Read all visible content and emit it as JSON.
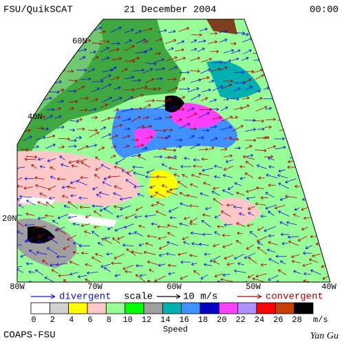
{
  "header": {
    "product": "FSU/QuikSCAT",
    "date": "21 December 2004",
    "time": "00:00"
  },
  "map": {
    "lat_labels": [
      "60N",
      "40N",
      "20N"
    ],
    "lon_labels": [
      "80W",
      "70W",
      "60W",
      "50W",
      "40W"
    ]
  },
  "legend": {
    "divergent": "divergent",
    "scale": "scale",
    "scale_value": "10 m/s",
    "convergent": "convergent",
    "divergent_color": "#1010e0",
    "convergent_color": "#b00000"
  },
  "colorbar": {
    "colors": [
      "#ffffff",
      "#d0d0d0",
      "#ffff00",
      "#ffc8c8",
      "#98ff98",
      "#00ff00",
      "#a0a0a0",
      "#00b0b0",
      "#4090ff",
      "#0000c0",
      "#ff40ff",
      "#b090ff",
      "#ff0000",
      "#c84000",
      "#000000"
    ],
    "ticks": [
      0,
      2,
      4,
      6,
      8,
      10,
      12,
      14,
      16,
      18,
      20,
      22,
      24,
      26,
      28
    ],
    "unit": "m/s",
    "title": "Speed"
  },
  "footer": {
    "credit": "COAPS-FSU",
    "author": "Yan Gu"
  }
}
